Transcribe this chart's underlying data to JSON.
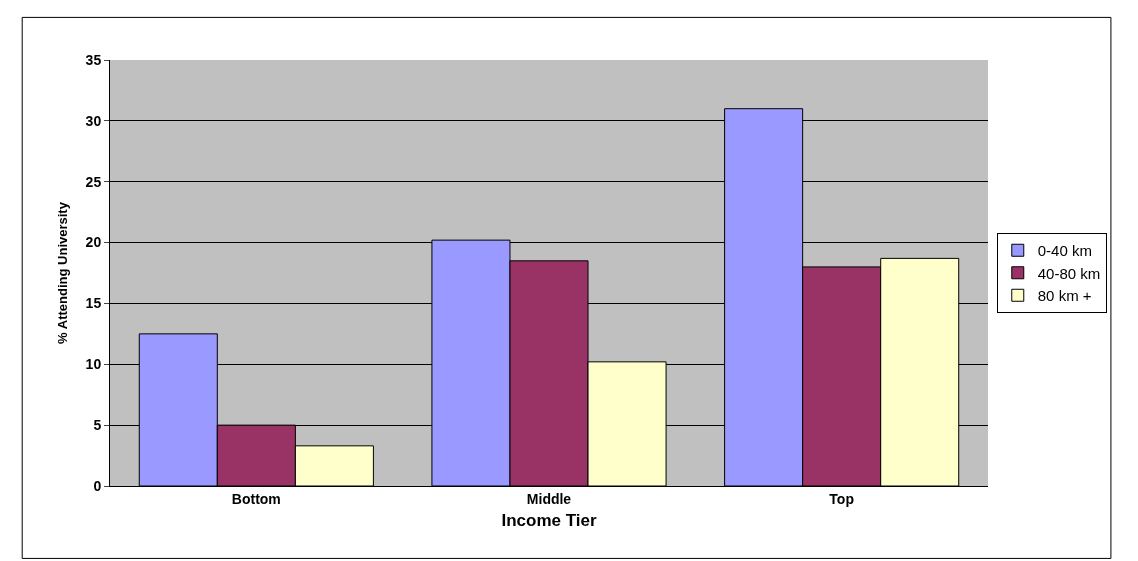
{
  "chart_data": {
    "type": "bar",
    "xlabel": "Income Tier",
    "ylabel": "% Attending University",
    "categories": [
      "Bottom",
      "Middle",
      "Top"
    ],
    "series": [
      {
        "name": "0-40 km",
        "color": "#9999ff",
        "values": [
          12.5,
          20.2,
          31.0
        ]
      },
      {
        "name": "40-80 km",
        "color": "#993366",
        "values": [
          5.0,
          18.5,
          18.0
        ]
      },
      {
        "name": "80 km +",
        "color": "#ffffcc",
        "values": [
          3.3,
          10.2,
          18.7
        ]
      }
    ],
    "ylim": [
      0,
      35
    ],
    "yticks": [
      0,
      5,
      10,
      15,
      20,
      25,
      30,
      35
    ],
    "grid": "y",
    "legend": "right"
  }
}
